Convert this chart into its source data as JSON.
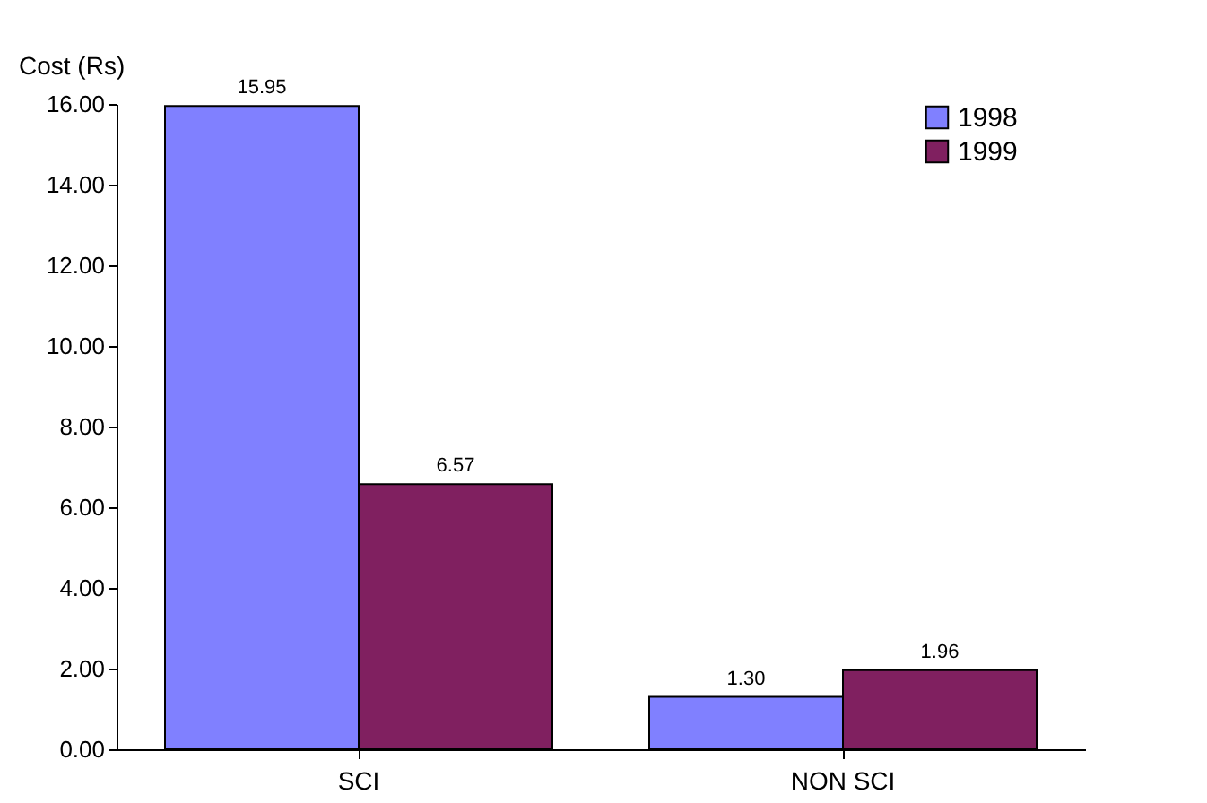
{
  "chart_data": {
    "type": "bar",
    "ylabel": "Cost (Rs)",
    "categories": [
      "SCI",
      "NON SCI"
    ],
    "series": [
      {
        "name": "1998",
        "color": "#8080ff",
        "values": [
          15.95,
          1.3
        ],
        "value_labels": [
          "15.95",
          "1.30"
        ]
      },
      {
        "name": "1999",
        "color": "#802060",
        "values": [
          6.57,
          1.96
        ],
        "value_labels": [
          "6.57",
          "1.96"
        ]
      }
    ],
    "ylim": [
      0,
      16
    ],
    "yticks": [
      {
        "value": 0,
        "label": "0.00"
      },
      {
        "value": 2,
        "label": "2.00"
      },
      {
        "value": 4,
        "label": "4.00"
      },
      {
        "value": 6,
        "label": "6.00"
      },
      {
        "value": 8,
        "label": "8.00"
      },
      {
        "value": 10,
        "label": "10.00"
      },
      {
        "value": 12,
        "label": "12.00"
      },
      {
        "value": 14,
        "label": "14.00"
      },
      {
        "value": 16,
        "label": "16.00"
      }
    ],
    "grid": false,
    "legend": "right"
  }
}
